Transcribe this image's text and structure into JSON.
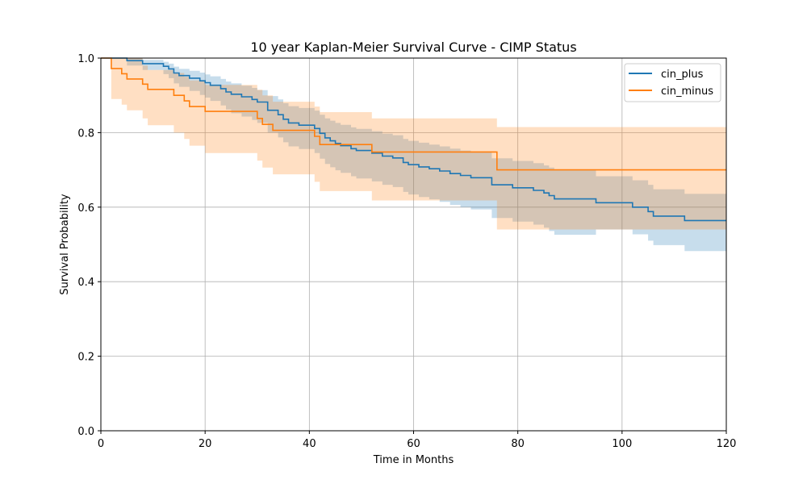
{
  "chart_data": {
    "type": "line",
    "title": "10 year Kaplan-Meier Survival Curve - CIMP Status",
    "xlabel": "Time in Months",
    "ylabel": "Survival Probability",
    "xlim": [
      0,
      120
    ],
    "ylim": [
      0.0,
      1.0
    ],
    "xticks": [
      "0",
      "20",
      "40",
      "60",
      "80",
      "100",
      "120"
    ],
    "yticks": [
      "0.0",
      "0.2",
      "0.4",
      "0.6",
      "0.8",
      "1.0"
    ],
    "grid": true,
    "legend_position": "top-right",
    "series": [
      {
        "name": "cin_plus",
        "color": "#1f77b4",
        "step": [
          [
            0,
            1.0
          ],
          [
            5,
            0.993
          ],
          [
            8,
            0.985
          ],
          [
            12,
            0.978
          ],
          [
            13,
            0.971
          ],
          [
            14,
            0.96
          ],
          [
            15,
            0.953
          ],
          [
            17,
            0.946
          ],
          [
            19,
            0.939
          ],
          [
            20,
            0.934
          ],
          [
            21,
            0.927
          ],
          [
            23,
            0.918
          ],
          [
            24,
            0.909
          ],
          [
            25,
            0.903
          ],
          [
            27,
            0.896
          ],
          [
            29,
            0.889
          ],
          [
            30,
            0.882
          ],
          [
            32,
            0.86
          ],
          [
            34,
            0.848
          ],
          [
            35,
            0.836
          ],
          [
            36,
            0.826
          ],
          [
            38,
            0.82
          ],
          [
            41,
            0.811
          ],
          [
            42,
            0.798
          ],
          [
            43,
            0.786
          ],
          [
            44,
            0.778
          ],
          [
            45,
            0.771
          ],
          [
            46,
            0.765
          ],
          [
            48,
            0.757
          ],
          [
            49,
            0.752
          ],
          [
            52,
            0.745
          ],
          [
            54,
            0.737
          ],
          [
            56,
            0.732
          ],
          [
            58,
            0.72
          ],
          [
            59,
            0.714
          ],
          [
            61,
            0.708
          ],
          [
            63,
            0.703
          ],
          [
            65,
            0.697
          ],
          [
            67,
            0.69
          ],
          [
            69,
            0.685
          ],
          [
            71,
            0.679
          ],
          [
            75,
            0.66
          ],
          [
            79,
            0.652
          ],
          [
            83,
            0.645
          ],
          [
            85,
            0.638
          ],
          [
            86,
            0.631
          ],
          [
            87,
            0.622
          ],
          [
            95,
            0.612
          ],
          [
            102,
            0.6
          ],
          [
            105,
            0.588
          ],
          [
            106,
            0.576
          ],
          [
            112,
            0.564
          ],
          [
            120,
            0.564
          ]
        ],
        "ci_lower": [
          [
            0,
            1.0
          ],
          [
            5,
            0.98
          ],
          [
            8,
            0.968
          ],
          [
            12,
            0.957
          ],
          [
            13,
            0.946
          ],
          [
            14,
            0.932
          ],
          [
            15,
            0.923
          ],
          [
            17,
            0.912
          ],
          [
            19,
            0.901
          ],
          [
            20,
            0.894
          ],
          [
            21,
            0.885
          ],
          [
            23,
            0.873
          ],
          [
            24,
            0.862
          ],
          [
            25,
            0.852
          ],
          [
            27,
            0.843
          ],
          [
            29,
            0.834
          ],
          [
            30,
            0.826
          ],
          [
            32,
            0.8
          ],
          [
            34,
            0.787
          ],
          [
            35,
            0.774
          ],
          [
            36,
            0.763
          ],
          [
            38,
            0.756
          ],
          [
            41,
            0.745
          ],
          [
            42,
            0.73
          ],
          [
            43,
            0.716
          ],
          [
            44,
            0.707
          ],
          [
            45,
            0.699
          ],
          [
            46,
            0.692
          ],
          [
            48,
            0.683
          ],
          [
            49,
            0.677
          ],
          [
            52,
            0.669
          ],
          [
            54,
            0.66
          ],
          [
            56,
            0.654
          ],
          [
            58,
            0.641
          ],
          [
            59,
            0.634
          ],
          [
            61,
            0.627
          ],
          [
            63,
            0.621
          ],
          [
            65,
            0.614
          ],
          [
            67,
            0.606
          ],
          [
            69,
            0.6
          ],
          [
            71,
            0.594
          ],
          [
            75,
            0.571
          ],
          [
            79,
            0.561
          ],
          [
            83,
            0.553
          ],
          [
            85,
            0.545
          ],
          [
            86,
            0.536
          ],
          [
            87,
            0.526
          ],
          [
            95,
            0.54
          ],
          [
            102,
            0.527
          ],
          [
            105,
            0.51
          ],
          [
            106,
            0.498
          ],
          [
            112,
            0.482
          ],
          [
            120,
            0.482
          ]
        ],
        "ci_upper": [
          [
            0,
            1.0
          ],
          [
            5,
            1.0
          ],
          [
            8,
            0.995
          ],
          [
            12,
            0.99
          ],
          [
            13,
            0.985
          ],
          [
            14,
            0.977
          ],
          [
            15,
            0.971
          ],
          [
            17,
            0.966
          ],
          [
            19,
            0.961
          ],
          [
            20,
            0.956
          ],
          [
            21,
            0.951
          ],
          [
            23,
            0.944
          ],
          [
            24,
            0.937
          ],
          [
            25,
            0.932
          ],
          [
            27,
            0.926
          ],
          [
            29,
            0.92
          ],
          [
            30,
            0.914
          ],
          [
            32,
            0.898
          ],
          [
            34,
            0.889
          ],
          [
            35,
            0.879
          ],
          [
            36,
            0.871
          ],
          [
            38,
            0.866
          ],
          [
            41,
            0.859
          ],
          [
            42,
            0.848
          ],
          [
            43,
            0.838
          ],
          [
            44,
            0.832
          ],
          [
            45,
            0.826
          ],
          [
            46,
            0.821
          ],
          [
            48,
            0.814
          ],
          [
            49,
            0.81
          ],
          [
            52,
            0.804
          ],
          [
            54,
            0.797
          ],
          [
            56,
            0.793
          ],
          [
            58,
            0.783
          ],
          [
            59,
            0.778
          ],
          [
            61,
            0.773
          ],
          [
            63,
            0.768
          ],
          [
            65,
            0.763
          ],
          [
            67,
            0.757
          ],
          [
            69,
            0.752
          ],
          [
            71,
            0.747
          ],
          [
            75,
            0.731
          ],
          [
            79,
            0.724
          ],
          [
            83,
            0.718
          ],
          [
            85,
            0.712
          ],
          [
            86,
            0.706
          ],
          [
            87,
            0.699
          ],
          [
            95,
            0.683
          ],
          [
            102,
            0.672
          ],
          [
            105,
            0.66
          ],
          [
            106,
            0.648
          ],
          [
            112,
            0.636
          ],
          [
            120,
            0.636
          ]
        ]
      },
      {
        "name": "cin_minus",
        "color": "#ff7f0e",
        "step": [
          [
            0,
            1.0
          ],
          [
            2,
            0.972
          ],
          [
            4,
            0.958
          ],
          [
            5,
            0.944
          ],
          [
            8,
            0.93
          ],
          [
            9,
            0.916
          ],
          [
            14,
            0.9
          ],
          [
            16,
            0.885
          ],
          [
            17,
            0.87
          ],
          [
            20,
            0.857
          ],
          [
            30,
            0.838
          ],
          [
            31,
            0.822
          ],
          [
            33,
            0.806
          ],
          [
            41,
            0.79
          ],
          [
            42,
            0.768
          ],
          [
            52,
            0.748
          ],
          [
            76,
            0.7
          ],
          [
            120,
            0.7
          ]
        ],
        "ci_lower": [
          [
            0,
            1.0
          ],
          [
            2,
            0.89
          ],
          [
            4,
            0.875
          ],
          [
            5,
            0.86
          ],
          [
            8,
            0.838
          ],
          [
            9,
            0.82
          ],
          [
            14,
            0.8
          ],
          [
            16,
            0.783
          ],
          [
            17,
            0.765
          ],
          [
            20,
            0.745
          ],
          [
            30,
            0.725
          ],
          [
            31,
            0.706
          ],
          [
            33,
            0.688
          ],
          [
            41,
            0.668
          ],
          [
            42,
            0.643
          ],
          [
            52,
            0.618
          ],
          [
            76,
            0.54
          ],
          [
            95,
            0.54
          ],
          [
            120,
            0.54
          ]
        ],
        "ci_upper": [
          [
            0,
            1.0
          ],
          [
            2,
            1.0
          ],
          [
            4,
            1.0
          ],
          [
            5,
            1.0
          ],
          [
            8,
            0.98
          ],
          [
            9,
            0.968
          ],
          [
            14,
            0.96
          ],
          [
            16,
            0.95
          ],
          [
            17,
            0.94
          ],
          [
            20,
            0.928
          ],
          [
            30,
            0.915
          ],
          [
            31,
            0.9
          ],
          [
            33,
            0.883
          ],
          [
            41,
            0.87
          ],
          [
            42,
            0.855
          ],
          [
            52,
            0.838
          ],
          [
            76,
            0.815
          ],
          [
            120,
            0.815
          ]
        ]
      }
    ]
  }
}
